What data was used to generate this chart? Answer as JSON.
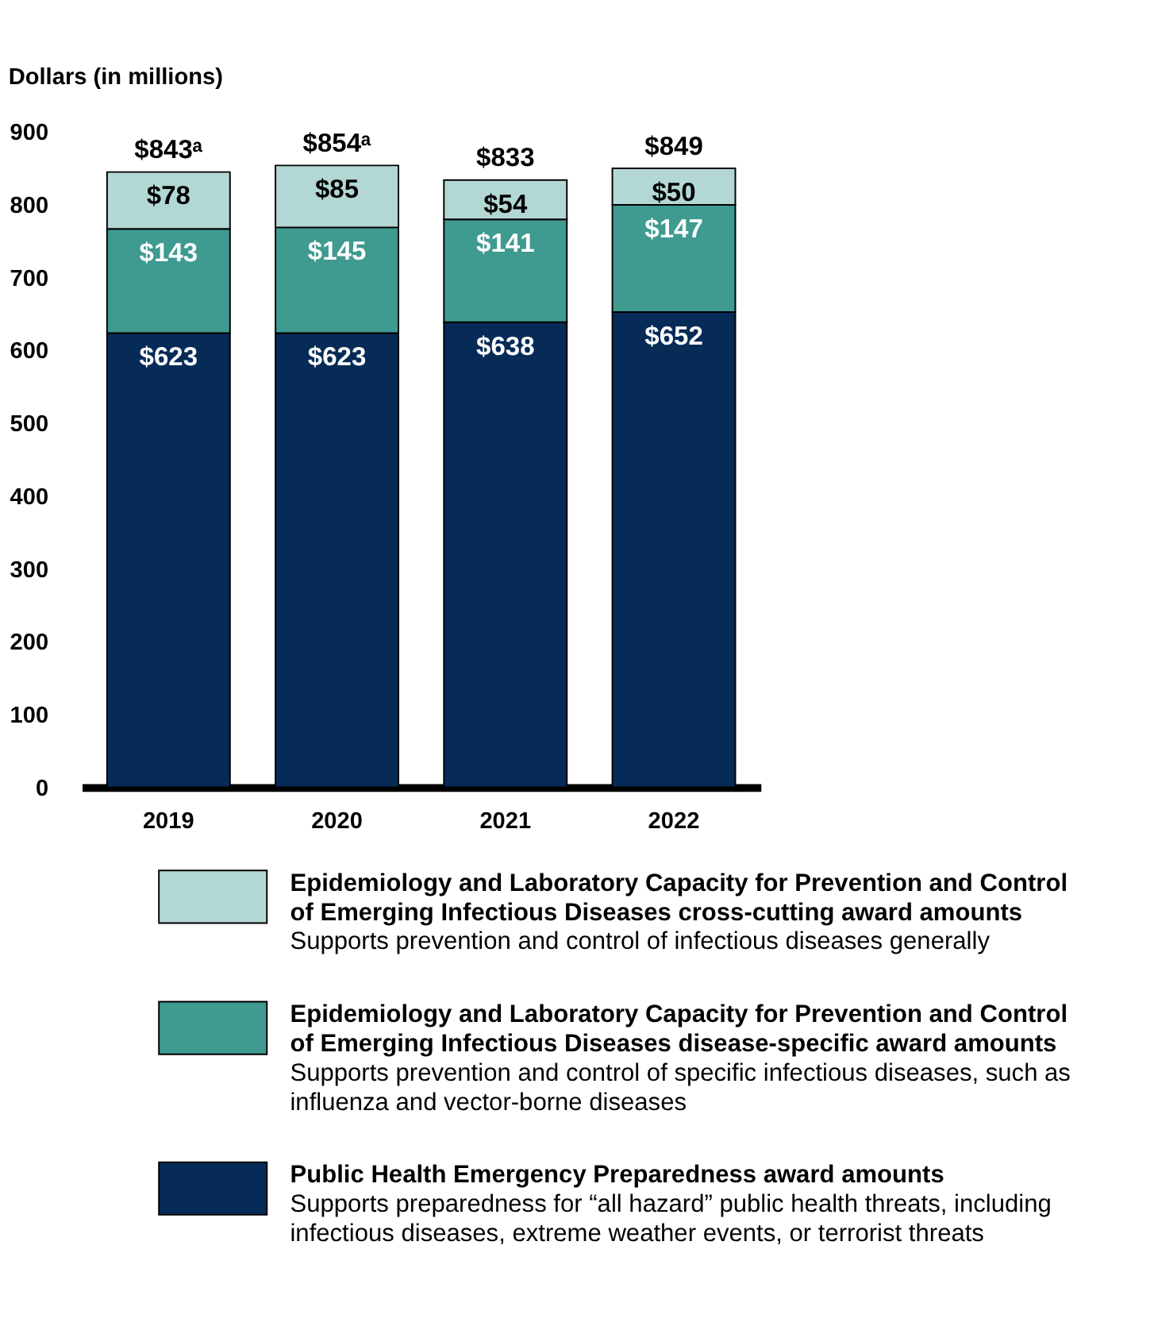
{
  "chart_data": {
    "type": "bar",
    "stacked": true,
    "ylabel": "Dollars (in millions)",
    "categories": [
      "2019",
      "2020",
      "2021",
      "2022"
    ],
    "series": [
      {
        "name": "Public Health Emergency Preparedness award amounts",
        "color": "#072b57",
        "values": [
          623,
          623,
          638,
          652
        ],
        "value_labels": [
          "$623",
          "$623",
          "$638",
          "$652"
        ]
      },
      {
        "name": "Epidemiology and Laboratory Capacity for Prevention and Control of Emerging Infectious Diseases disease-specific award amounts",
        "color": "#3f9a90",
        "values": [
          143,
          145,
          141,
          147
        ],
        "value_labels": [
          "$143",
          "$145",
          "$141",
          "$147"
        ]
      },
      {
        "name": "Epidemiology and Laboratory Capacity for Prevention and Control of Emerging Infectious Diseases cross-cutting award amounts",
        "color": "#b3d7d5",
        "values": [
          78,
          85,
          54,
          50
        ],
        "value_labels": [
          "$78",
          "$85",
          "$54",
          "$50"
        ]
      }
    ],
    "ylim": [
      0,
      900
    ],
    "yticks": [
      0,
      100,
      200,
      300,
      400,
      500,
      600,
      700,
      800,
      900
    ],
    "grid": false,
    "totals": [
      "$843ᵃ",
      "$854ᵃ",
      "$833",
      "$849"
    ],
    "legend": "bottom",
    "annotations": [
      "Supports preparedness for “all hazard” public health threats, including infectious diseases, extreme weather events, or terrorist threats",
      "Supports prevention and control of specific infectious diseases, such as influenza and vector-borne diseases",
      "Supports prevention and control of infectious diseases generally"
    ]
  }
}
